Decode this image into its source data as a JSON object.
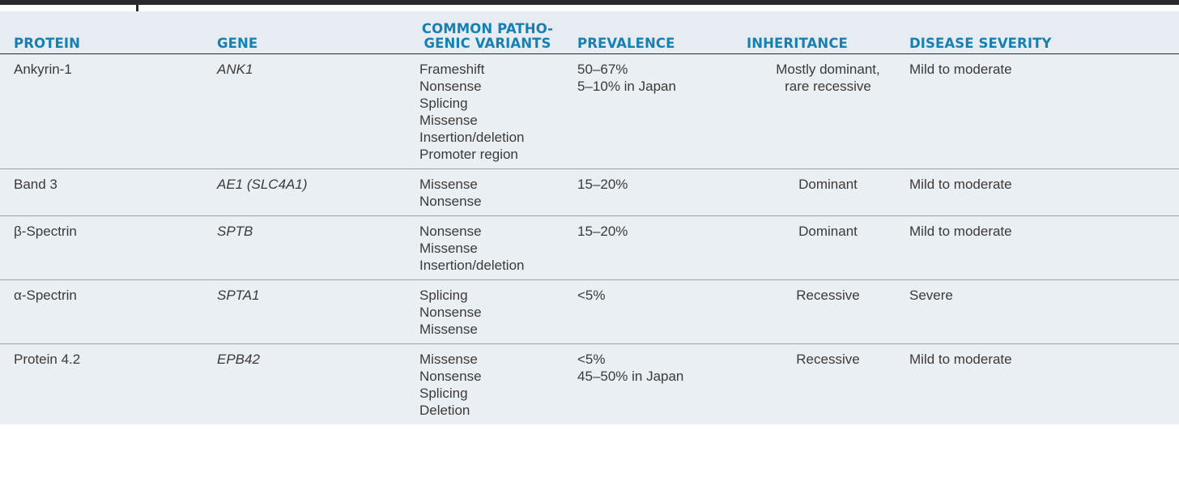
{
  "headers": {
    "protein": "PROTEIN",
    "gene": "GENE",
    "variants_line1": "COMMON PATHO-",
    "variants_line2": "GENIC VARIANTS",
    "prevalence": "PREVALENCE",
    "inheritance": "INHERITANCE",
    "severity": "DISEASE SEVERITY"
  },
  "rows": [
    {
      "protein": "Ankyrin-1",
      "gene": "ANK1",
      "variants": [
        "Frameshift",
        "Nonsense",
        "Splicing",
        "Missense",
        "Insertion/deletion",
        "Promoter region"
      ],
      "prevalence": [
        "50–67%",
        "5–10% in Japan"
      ],
      "inheritance": [
        "Mostly dominant,",
        "rare recessive"
      ],
      "severity": "Mild to moderate"
    },
    {
      "protein": "Band 3",
      "gene": "AE1 (SLC4A1)",
      "variants": [
        "Missense",
        "Nonsense"
      ],
      "prevalence": [
        "15–20%"
      ],
      "inheritance": [
        "Dominant"
      ],
      "severity": "Mild to moderate"
    },
    {
      "protein": "β-Spectrin",
      "gene": "SPTB",
      "variants": [
        "Nonsense",
        "Missense",
        "Insertion/deletion"
      ],
      "prevalence": [
        "15–20%"
      ],
      "inheritance": [
        "Dominant"
      ],
      "severity": "Mild to moderate"
    },
    {
      "protein": "α-Spectrin",
      "gene": "SPTA1",
      "variants": [
        "Splicing",
        "Nonsense",
        "Missense"
      ],
      "prevalence": [
        "<5%"
      ],
      "inheritance": [
        "Recessive"
      ],
      "severity": "Severe"
    },
    {
      "protein": "Protein 4.2",
      "gene": "EPB42",
      "variants": [
        "Missense",
        "Nonsense",
        "Splicing",
        "Deletion"
      ],
      "prevalence": [
        "<5%",
        "45–50% in Japan"
      ],
      "inheritance": [
        "Recessive"
      ],
      "severity": "Mild to moderate"
    }
  ],
  "colors": {
    "header_text": "#1680b4",
    "row_background": "#eaeff3",
    "header_background": "#e6ecf1",
    "rule": "#2a2a2a"
  }
}
